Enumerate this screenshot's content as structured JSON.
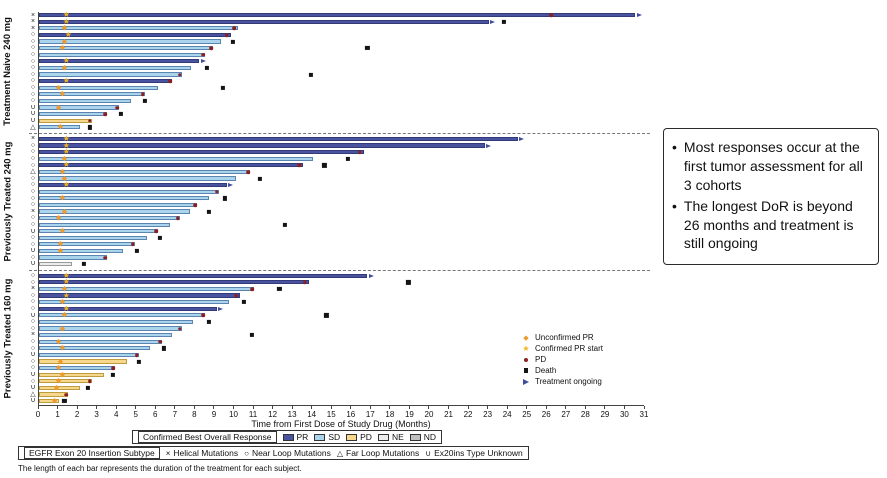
{
  "figure": {
    "x_axis_label": "Time from First Dose of Study Drug (Months)",
    "footnote": "The length of each bar represents the duration of the treatment for each subject.",
    "bullet_char": "•"
  },
  "annotation_box": {
    "bullets": [
      "Most responses occur at the first tumor assessment for all 3 cohorts",
      "The longest DoR is beyond 26 months and treatment is still ongoing"
    ]
  },
  "legends": {
    "response": {
      "title": "Confirmed Best Overall Response",
      "items": [
        {
          "label": "PR",
          "color": "#4a539f"
        },
        {
          "label": "SD",
          "color": "#aad3ec"
        },
        {
          "label": "PD",
          "color": "#f6d88c"
        },
        {
          "label": "NE",
          "color": "#ececec"
        },
        {
          "label": "ND",
          "color": "#bfbfbf"
        }
      ]
    },
    "subtype": {
      "title": "EGFR Exon 20 Insertion Subtype",
      "items": [
        {
          "symbol": "×",
          "label": "Helical Mutations"
        },
        {
          "symbol": "○",
          "label": "Near Loop Mutations"
        },
        {
          "symbol": "△",
          "label": "Far Loop Mutations"
        },
        {
          "symbol": "∪",
          "label": "Ex20ins Type Unknown"
        }
      ]
    },
    "markers": {
      "items": [
        {
          "type": "diamond",
          "label": "Unconfirmed PR"
        },
        {
          "type": "star",
          "label": "Confirmed PR start"
        },
        {
          "type": "pd",
          "label": "PD"
        },
        {
          "type": "death",
          "label": "Death"
        },
        {
          "type": "ongoing",
          "label": "Treatment ongoing"
        }
      ]
    }
  },
  "chart_data": {
    "type": "swimmer",
    "x_range": [
      0,
      31
    ],
    "x_ticks": [
      0,
      1,
      2,
      3,
      4,
      5,
      6,
      7,
      8,
      9,
      10,
      11,
      12,
      13,
      14,
      15,
      16,
      17,
      18,
      19,
      20,
      21,
      22,
      23,
      24,
      25,
      26,
      27,
      28,
      29,
      30,
      31
    ],
    "subtype_symbols": {
      "x": "×",
      "o": "○",
      "t": "△",
      "u": "∪"
    },
    "response_colors": {
      "PR": "#4a539f",
      "SD": "#aad3ec",
      "PD": "#f6d88c",
      "NE": "#ececec",
      "ND": "#bfbfbf"
    },
    "marker_colors": {
      "star": "#f4b41a",
      "diamond": "#ef9a2c",
      "pd": "#8b2020",
      "death": "#141414",
      "ongoing": "#3f4d9e"
    },
    "cohorts": [
      {
        "name": "Treatment Naive 240 mg",
        "subjects": [
          {
            "s": "x",
            "r": "PR",
            "len": 30.5,
            "ongoing": true,
            "m": [
              [
                "star",
                1.4
              ],
              [
                "pd",
                26.2
              ]
            ]
          },
          {
            "s": "x",
            "r": "PR",
            "len": 23.0,
            "ongoing": true,
            "m": [
              [
                "star",
                1.4
              ],
              [
                "death",
                23.8
              ]
            ]
          },
          {
            "s": "x",
            "r": "SD",
            "len": 10.2,
            "m": [
              [
                "diamond",
                1.3
              ],
              [
                "pd",
                10.0
              ]
            ]
          },
          {
            "s": "o",
            "r": "PR",
            "len": 9.8,
            "m": [
              [
                "star",
                1.5
              ],
              [
                "pd",
                9.6
              ]
            ]
          },
          {
            "s": "o",
            "r": "SD",
            "len": 9.3,
            "m": [
              [
                "diamond",
                1.3
              ],
              [
                "death",
                9.9
              ]
            ]
          },
          {
            "s": "o",
            "r": "SD",
            "len": 8.9,
            "m": [
              [
                "diamond",
                1.2
              ],
              [
                "pd",
                8.8
              ],
              [
                "death",
                16.8
              ]
            ]
          },
          {
            "s": "o",
            "r": "SD",
            "len": 8.5,
            "m": [
              [
                "pd",
                8.4
              ]
            ]
          },
          {
            "s": "o",
            "r": "PR",
            "len": 8.2,
            "ongoing": true,
            "m": [
              [
                "star",
                1.4
              ]
            ]
          },
          {
            "s": "o",
            "r": "SD",
            "len": 7.8,
            "m": [
              [
                "diamond",
                1.3
              ],
              [
                "death",
                8.6
              ]
            ]
          },
          {
            "s": "o",
            "r": "SD",
            "len": 7.3,
            "m": [
              [
                "pd",
                7.2
              ],
              [
                "death",
                13.9
              ]
            ]
          },
          {
            "s": "o",
            "r": "PR",
            "len": 6.8,
            "m": [
              [
                "star",
                1.4
              ],
              [
                "pd",
                6.7
              ]
            ]
          },
          {
            "s": "o",
            "r": "SD",
            "len": 6.1,
            "m": [
              [
                "diamond",
                1.0
              ],
              [
                "death",
                9.4
              ]
            ]
          },
          {
            "s": "o",
            "r": "SD",
            "len": 5.4,
            "m": [
              [
                "diamond",
                1.2
              ],
              [
                "pd",
                5.3
              ]
            ]
          },
          {
            "s": "o",
            "r": "SD",
            "len": 4.7,
            "m": [
              [
                "death",
                5.4
              ]
            ]
          },
          {
            "s": "u",
            "r": "SD",
            "len": 4.1,
            "m": [
              [
                "diamond",
                1.0
              ],
              [
                "pd",
                4.0
              ]
            ]
          },
          {
            "s": "u",
            "r": "SD",
            "len": 3.5,
            "m": [
              [
                "pd",
                3.4
              ],
              [
                "death",
                4.2
              ]
            ]
          },
          {
            "s": "u",
            "r": "PD",
            "len": 2.7,
            "m": [
              [
                "pd",
                2.6
              ]
            ]
          },
          {
            "s": "t",
            "r": "SD",
            "len": 2.1,
            "m": [
              [
                "diamond",
                1.1
              ],
              [
                "death",
                2.6
              ]
            ]
          }
        ]
      },
      {
        "name": "Previously Treated 240 mg",
        "subjects": [
          {
            "s": "x",
            "r": "PR",
            "len": 24.5,
            "ongoing": true,
            "m": [
              [
                "star",
                1.4
              ]
            ]
          },
          {
            "s": "o",
            "r": "PR",
            "len": 22.8,
            "ongoing": true,
            "m": [
              [
                "star",
                1.4
              ]
            ]
          },
          {
            "s": "o",
            "r": "PR",
            "len": 16.6,
            "m": [
              [
                "star",
                1.4
              ],
              [
                "pd",
                16.4
              ]
            ]
          },
          {
            "s": "o",
            "r": "SD",
            "len": 14.0,
            "m": [
              [
                "diamond",
                1.3
              ],
              [
                "death",
                15.8
              ]
            ]
          },
          {
            "s": "o",
            "r": "PR",
            "len": 13.5,
            "m": [
              [
                "star",
                1.4
              ],
              [
                "pd",
                13.3
              ],
              [
                "death",
                14.6
              ]
            ]
          },
          {
            "s": "t",
            "r": "SD",
            "len": 10.8,
            "m": [
              [
                "diamond",
                1.2
              ],
              [
                "pd",
                10.7
              ]
            ]
          },
          {
            "s": "o",
            "r": "SD",
            "len": 10.1,
            "m": [
              [
                "diamond",
                1.3
              ],
              [
                "death",
                11.3
              ]
            ]
          },
          {
            "s": "o",
            "r": "PR",
            "len": 9.6,
            "ongoing": true,
            "m": [
              [
                "star",
                1.4
              ]
            ]
          },
          {
            "s": "o",
            "r": "SD",
            "len": 9.2,
            "m": [
              [
                "pd",
                9.1
              ]
            ]
          },
          {
            "s": "o",
            "r": "SD",
            "len": 8.7,
            "m": [
              [
                "diamond",
                1.2
              ],
              [
                "death",
                9.5
              ]
            ]
          },
          {
            "s": "o",
            "r": "SD",
            "len": 8.1,
            "m": [
              [
                "pd",
                8.0
              ]
            ]
          },
          {
            "s": "x",
            "r": "SD",
            "len": 7.7,
            "m": [
              [
                "diamond",
                1.3
              ],
              [
                "death",
                8.7
              ]
            ]
          },
          {
            "s": "o",
            "r": "SD",
            "len": 7.2,
            "m": [
              [
                "diamond",
                1.0
              ],
              [
                "pd",
                7.1
              ]
            ]
          },
          {
            "s": "o",
            "r": "SD",
            "len": 6.7,
            "m": [
              [
                "death",
                12.6
              ]
            ]
          },
          {
            "s": "u",
            "r": "SD",
            "len": 6.1,
            "m": [
              [
                "diamond",
                1.2
              ],
              [
                "pd",
                6.0
              ]
            ]
          },
          {
            "s": "o",
            "r": "SD",
            "len": 5.5,
            "m": [
              [
                "death",
                6.2
              ]
            ]
          },
          {
            "s": "o",
            "r": "SD",
            "len": 4.9,
            "m": [
              [
                "diamond",
                1.1
              ],
              [
                "pd",
                4.8
              ]
            ]
          },
          {
            "s": "u",
            "r": "SD",
            "len": 4.3,
            "m": [
              [
                "diamond",
                1.1
              ],
              [
                "death",
                5.0
              ]
            ]
          },
          {
            "s": "o",
            "r": "SD",
            "len": 3.5,
            "m": [
              [
                "pd",
                3.4
              ]
            ]
          },
          {
            "s": "u",
            "r": "NE",
            "len": 1.7,
            "m": [
              [
                "death",
                2.3
              ]
            ]
          }
        ]
      },
      {
        "name": "Previously Treated 160 mg",
        "subjects": [
          {
            "s": "o",
            "r": "PR",
            "len": 16.8,
            "ongoing": true,
            "m": [
              [
                "star",
                1.4
              ]
            ]
          },
          {
            "s": "o",
            "r": "PR",
            "len": 13.8,
            "m": [
              [
                "star",
                1.4
              ],
              [
                "pd",
                13.6
              ],
              [
                "death",
                18.9
              ]
            ]
          },
          {
            "s": "x",
            "r": "SD",
            "len": 11.0,
            "m": [
              [
                "diamond",
                1.3
              ],
              [
                "pd",
                10.9
              ],
              [
                "death",
                12.3
              ]
            ]
          },
          {
            "s": "o",
            "r": "PR",
            "len": 10.3,
            "m": [
              [
                "star",
                1.4
              ],
              [
                "pd",
                10.1
              ]
            ]
          },
          {
            "s": "o",
            "r": "SD",
            "len": 9.7,
            "m": [
              [
                "diamond",
                1.2
              ],
              [
                "death",
                10.5
              ]
            ]
          },
          {
            "s": "o",
            "r": "PR",
            "len": 9.1,
            "ongoing": true,
            "m": [
              [
                "star",
                1.4
              ]
            ]
          },
          {
            "s": "u",
            "r": "SD",
            "len": 8.5,
            "m": [
              [
                "diamond",
                1.3
              ],
              [
                "pd",
                8.4
              ],
              [
                "death",
                14.7
              ]
            ]
          },
          {
            "s": "o",
            "r": "SD",
            "len": 7.9,
            "m": [
              [
                "death",
                8.7
              ]
            ]
          },
          {
            "s": "o",
            "r": "SD",
            "len": 7.3,
            "m": [
              [
                "diamond",
                1.2
              ],
              [
                "pd",
                7.2
              ]
            ]
          },
          {
            "s": "x",
            "r": "SD",
            "len": 6.8,
            "m": [
              [
                "death",
                10.9
              ]
            ]
          },
          {
            "s": "o",
            "r": "SD",
            "len": 6.3,
            "m": [
              [
                "diamond",
                1.0
              ],
              [
                "pd",
                6.2
              ]
            ]
          },
          {
            "s": "o",
            "r": "SD",
            "len": 5.7,
            "m": [
              [
                "diamond",
                1.2
              ],
              [
                "death",
                6.4
              ]
            ]
          },
          {
            "s": "u",
            "r": "SD",
            "len": 5.1,
            "m": [
              [
                "pd",
                5.0
              ]
            ]
          },
          {
            "s": "o",
            "r": "PD",
            "len": 4.5,
            "m": [
              [
                "diamond",
                1.1
              ],
              [
                "death",
                5.1
              ]
            ]
          },
          {
            "s": "o",
            "r": "SD",
            "len": 3.9,
            "m": [
              [
                "diamond",
                1.0
              ],
              [
                "pd",
                3.8
              ]
            ]
          },
          {
            "s": "u",
            "r": "PD",
            "len": 3.3,
            "m": [
              [
                "diamond",
                1.2
              ],
              [
                "death",
                3.8
              ]
            ]
          },
          {
            "s": "o",
            "r": "PD",
            "len": 2.7,
            "m": [
              [
                "diamond",
                1.0
              ],
              [
                "pd",
                2.6
              ]
            ]
          },
          {
            "s": "u",
            "r": "PD",
            "len": 2.1,
            "m": [
              [
                "diamond",
                0.9
              ],
              [
                "death",
                2.5
              ]
            ]
          },
          {
            "s": "t",
            "r": "PD",
            "len": 1.5,
            "m": [
              [
                "pd",
                1.4
              ]
            ]
          },
          {
            "s": "u",
            "r": "PD",
            "len": 1.0,
            "m": [
              [
                "diamond",
                0.8
              ],
              [
                "death",
                1.3
              ]
            ]
          }
        ]
      }
    ]
  }
}
